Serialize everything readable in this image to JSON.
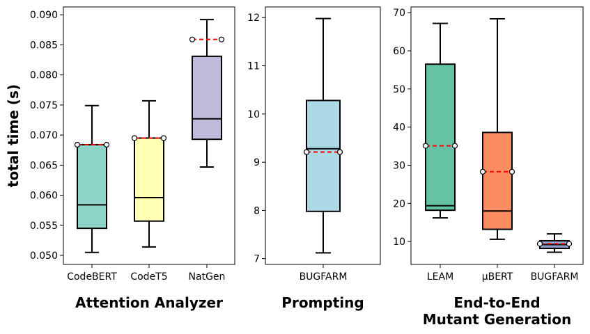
{
  "ylabel": "total time (s)",
  "colors": {
    "CodeBERT": "#8dd3c7",
    "CodeT5": "#ffffb3",
    "NatGen": "#bebada",
    "BUGFARM_prompting": "#add8e6",
    "LEAM": "#66c2a5",
    "uBERT": "#fc8d62",
    "BUGFARM_e2e": "#8da0cb",
    "mean_line": "#ff0000"
  },
  "chart_data": [
    {
      "type": "box",
      "title": "Attention Analyzer",
      "ylim": [
        0.0485,
        0.0913
      ],
      "yticks": [
        "0.050",
        "0.055",
        "0.060",
        "0.065",
        "0.070",
        "0.075",
        "0.080",
        "0.085",
        "0.090"
      ],
      "ytick_values": [
        0.05,
        0.055,
        0.06,
        0.065,
        0.07,
        0.075,
        0.08,
        0.085,
        0.09
      ],
      "boxes": [
        {
          "label": "CodeBERT",
          "whislo": 0.0505,
          "q1": 0.0545,
          "med": 0.0584,
          "q3": 0.0684,
          "whishi": 0.0749,
          "mean": 0.0684
        },
        {
          "label": "CodeT5",
          "whislo": 0.0514,
          "q1": 0.0557,
          "med": 0.0596,
          "q3": 0.0695,
          "whishi": 0.0757,
          "mean": 0.0695
        },
        {
          "label": "NatGen",
          "whislo": 0.0647,
          "q1": 0.0693,
          "med": 0.0727,
          "q3": 0.0831,
          "whishi": 0.0892,
          "mean": 0.0859
        }
      ]
    },
    {
      "type": "box",
      "title": "Prompting",
      "ylim": [
        6.88,
        12.22
      ],
      "yticks": [
        "7",
        "8",
        "9",
        "10",
        "11",
        "12"
      ],
      "ytick_values": [
        7,
        8,
        9,
        10,
        11,
        12
      ],
      "boxes": [
        {
          "label": "BUGFARM",
          "whislo": 7.12,
          "q1": 7.98,
          "med": 9.28,
          "q3": 10.28,
          "whishi": 11.98,
          "mean": 9.21
        }
      ]
    },
    {
      "type": "box",
      "title": "End-to-End\nMutant Generation",
      "title_lines": [
        "End-to-End",
        "Mutant Generation"
      ],
      "ylim": [
        4.0,
        71.5
      ],
      "yticks": [
        "10",
        "20",
        "30",
        "40",
        "50",
        "60",
        "70"
      ],
      "ytick_values": [
        10,
        20,
        30,
        40,
        50,
        60,
        70
      ],
      "boxes": [
        {
          "label": "LEAM",
          "whislo": 16.2,
          "q1": 18.2,
          "med": 19.4,
          "q3": 56.5,
          "whishi": 67.2,
          "mean": 35.1
        },
        {
          "label": "μBERT",
          "whislo": 10.6,
          "q1": 13.2,
          "med": 18.0,
          "q3": 38.6,
          "whishi": 68.4,
          "mean": 28.3
        },
        {
          "label": "BUGFARM",
          "whislo": 7.2,
          "q1": 8.2,
          "med": 9.2,
          "q3": 10.2,
          "whishi": 12.0,
          "mean": 9.4
        }
      ]
    }
  ]
}
